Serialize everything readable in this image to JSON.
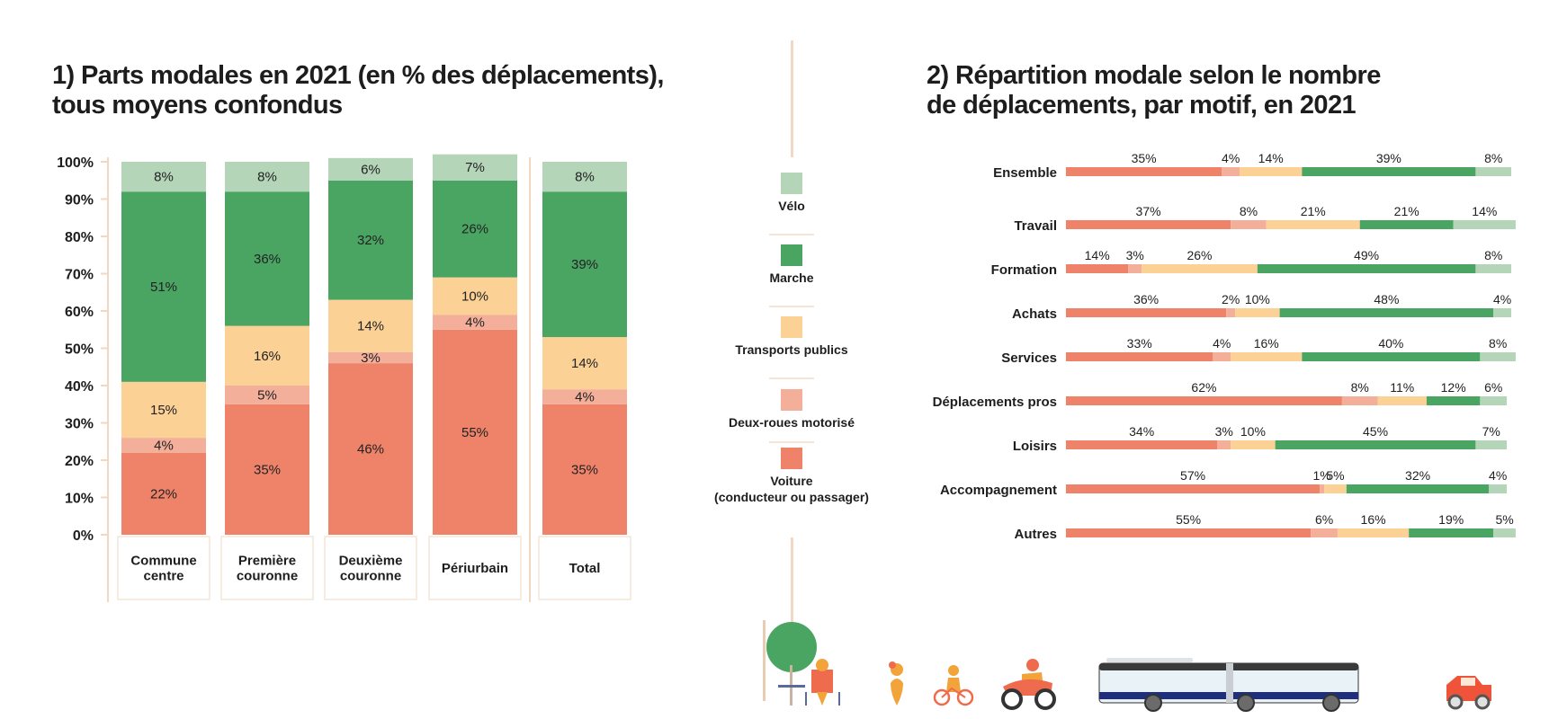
{
  "titles": {
    "left": "1) Parts modales en 2021 (en % des déplacements), tous moyens confondus",
    "right": "2) Répartition modale selon le nombre de déplacements, par motif, en 2021"
  },
  "colors": {
    "voiture": "#ef836a",
    "deux_roues": "#f4af9a",
    "transports_publics": "#fbd196",
    "marche": "#4aa563",
    "velo": "#b4d5b8",
    "axis": "#f2d8c2"
  },
  "legend": [
    {
      "key": "velo",
      "label": "Vélo"
    },
    {
      "key": "marche",
      "label": "Marche"
    },
    {
      "key": "transports_publics",
      "label": "Transports publics"
    },
    {
      "key": "deux_roues",
      "label": "Deux-roues motorisé"
    },
    {
      "key": "voiture",
      "label": "Voiture\n(conducteur ou passager)"
    }
  ],
  "illustrations": [
    "walker-reading-bench-icon",
    "pedestrian-icon",
    "cyclist-icon",
    "motorcycle-icon",
    "articulated-bus-icon",
    "car-icon"
  ],
  "chart_data": [
    {
      "type": "bar",
      "stacked": true,
      "orientation": "vertical",
      "title": "1) Parts modales en 2021 (en % des déplacements), tous moyens confondus",
      "xlabel": "",
      "ylabel": "",
      "ylim": [
        0,
        100
      ],
      "yticks": [
        "0%",
        "10%",
        "20%",
        "30%",
        "40%",
        "50%",
        "60%",
        "70%",
        "80%",
        "90%",
        "100%"
      ],
      "categories": [
        "Commune\ncentre",
        "Première\ncouronne",
        "Deuxième\ncouronne",
        "Périurbain",
        "Total"
      ],
      "series": [
        {
          "name": "Voiture (conducteur ou passager)",
          "key": "voiture",
          "values": [
            22,
            35,
            46,
            55,
            35
          ]
        },
        {
          "name": "Deux-roues motorisé",
          "key": "deux_roues",
          "values": [
            4,
            5,
            3,
            4,
            4
          ]
        },
        {
          "name": "Transports publics",
          "key": "transports_publics",
          "values": [
            15,
            16,
            14,
            10,
            14
          ]
        },
        {
          "name": "Marche",
          "key": "marche",
          "values": [
            51,
            36,
            32,
            26,
            39
          ]
        },
        {
          "name": "Vélo",
          "key": "velo",
          "values": [
            8,
            8,
            6,
            7,
            8
          ]
        }
      ],
      "legend_position": "right",
      "grid": false
    },
    {
      "type": "bar",
      "stacked": true,
      "orientation": "horizontal",
      "title": "2) Répartition modale selon le nombre de déplacements, par motif, en 2021",
      "xlim": [
        0,
        100
      ],
      "categories": [
        "Ensemble",
        "Travail",
        "Formation",
        "Achats",
        "Services",
        "Déplacements pros",
        "Loisirs",
        "Accompagnement",
        "Autres"
      ],
      "series": [
        {
          "name": "Voiture (conducteur ou passager)",
          "key": "voiture",
          "values": [
            35,
            37,
            14,
            36,
            33,
            62,
            34,
            57,
            55
          ]
        },
        {
          "name": "Deux-roues motorisé",
          "key": "deux_roues",
          "values": [
            4,
            8,
            3,
            2,
            4,
            8,
            3,
            1,
            6
          ]
        },
        {
          "name": "Transports publics",
          "key": "transports_publics",
          "values": [
            14,
            21,
            26,
            10,
            16,
            11,
            10,
            5,
            16
          ]
        },
        {
          "name": "Marche",
          "key": "marche",
          "values": [
            39,
            21,
            49,
            48,
            40,
            12,
            45,
            32,
            19
          ]
        },
        {
          "name": "Vélo",
          "key": "velo",
          "values": [
            8,
            14,
            8,
            4,
            8,
            6,
            7,
            4,
            5
          ]
        }
      ],
      "grid": false
    }
  ]
}
